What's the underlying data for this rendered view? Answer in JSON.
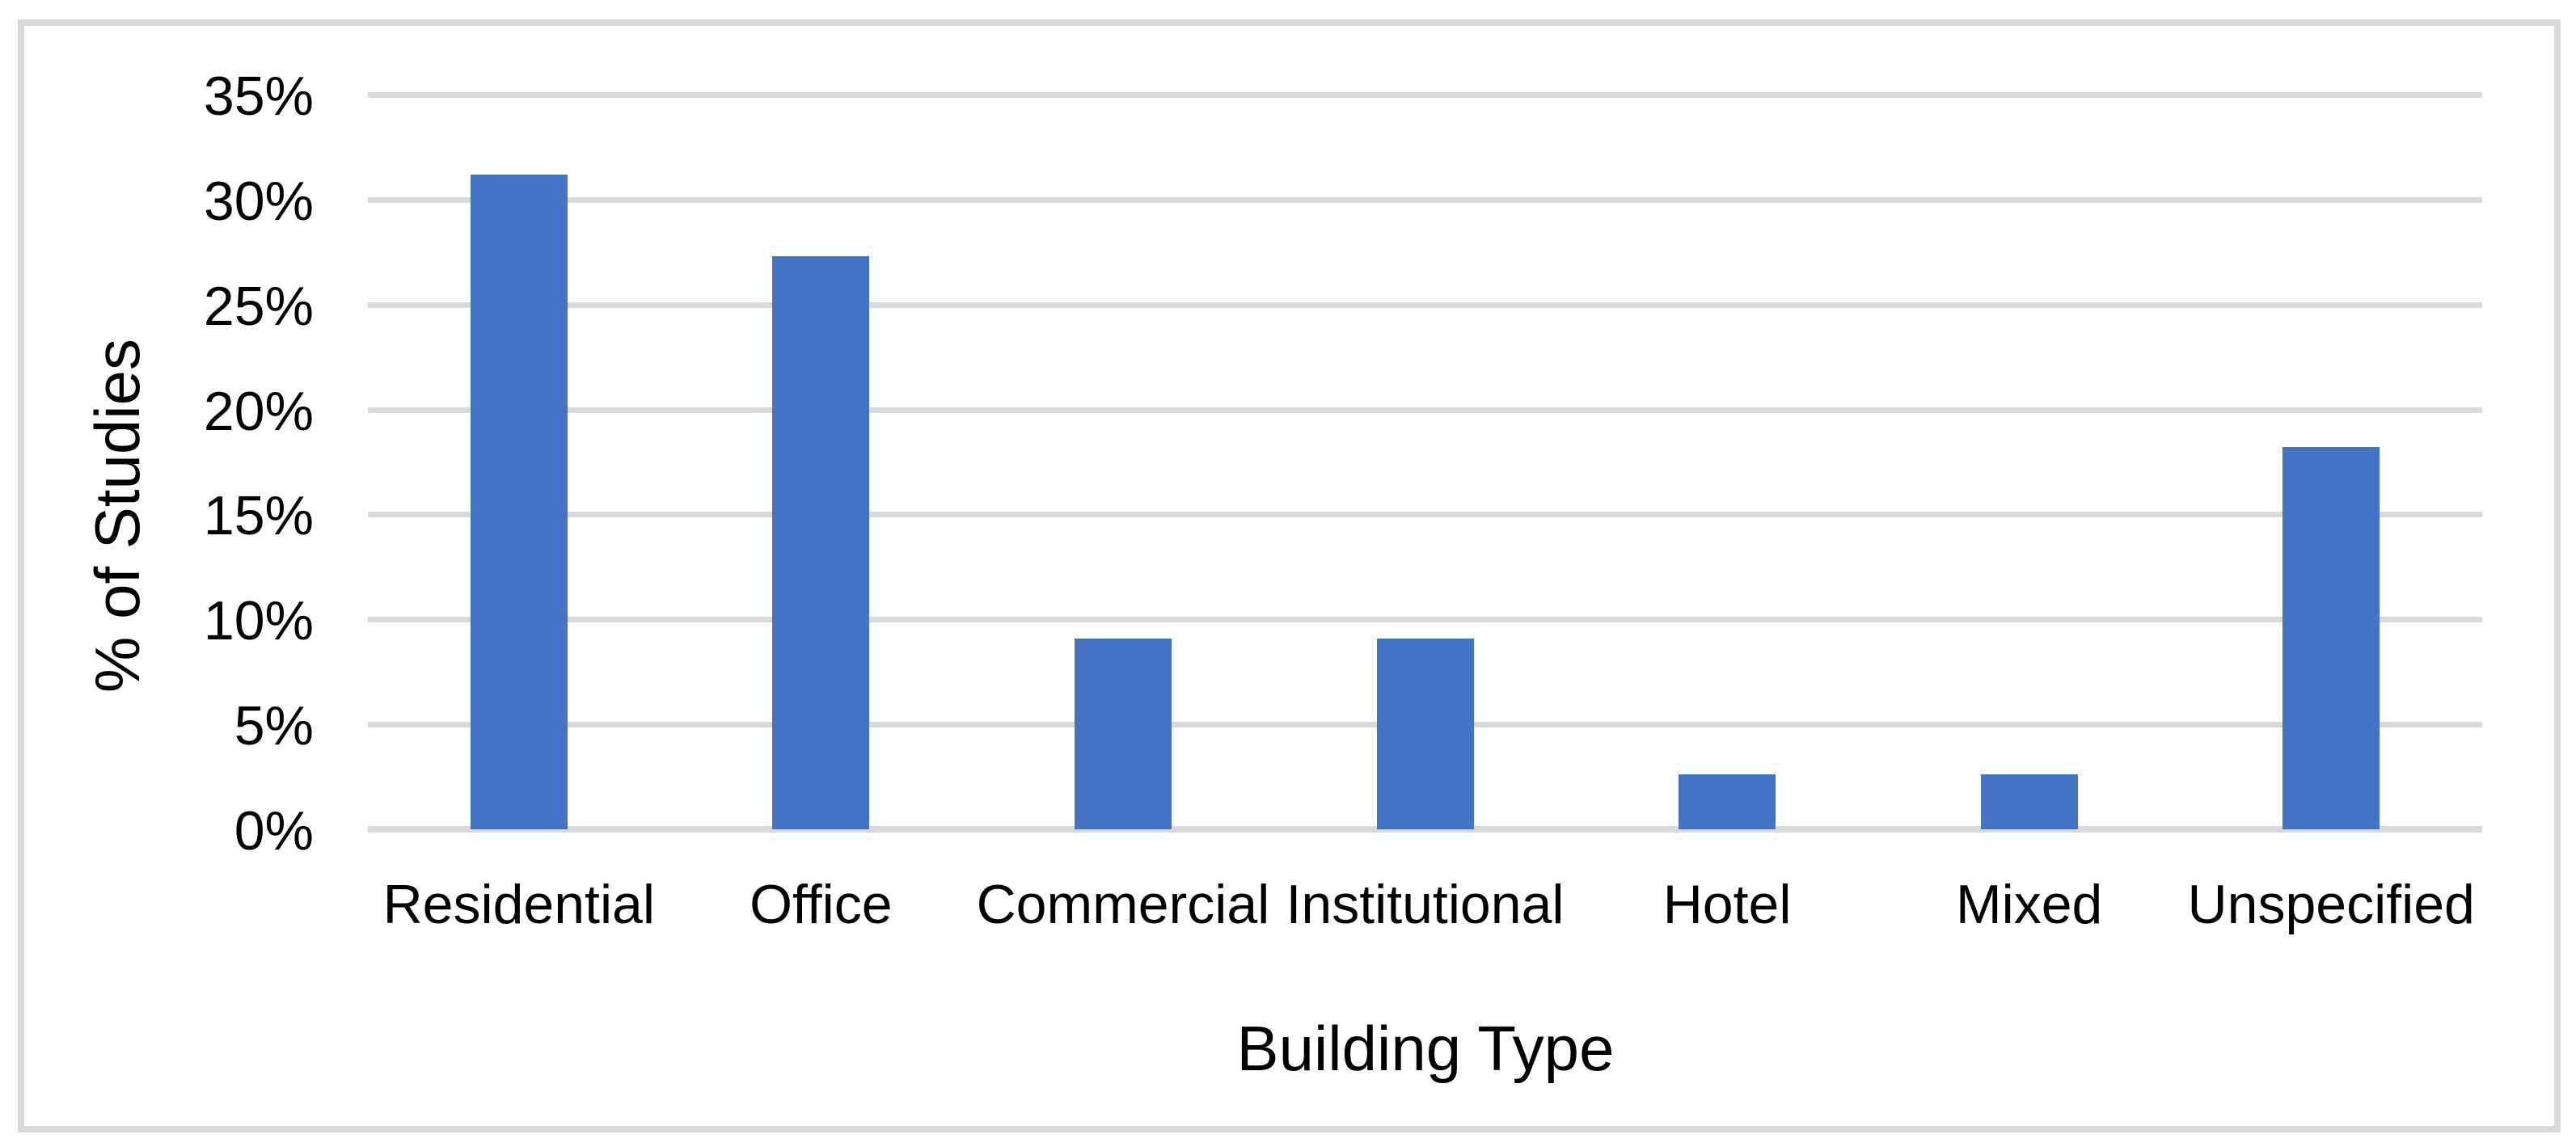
{
  "chart_data": {
    "type": "bar",
    "title": "",
    "xlabel": "Building Type",
    "ylabel": "% of Studies",
    "categories": [
      "Residential",
      "Office",
      "Commercial",
      "Institutional",
      "Hotel",
      "Mixed",
      "Unspecified"
    ],
    "values": [
      31.2,
      27.3,
      9.1,
      9.1,
      2.6,
      2.6,
      18.2
    ],
    "value_unit": "%",
    "ylim": [
      0,
      35
    ],
    "ytick_step": 5,
    "ytick_labels": [
      "0%",
      "5%",
      "10%",
      "15%",
      "20%",
      "25%",
      "30%",
      "35%"
    ],
    "grid": "horizontal",
    "legend": "none",
    "colors": {
      "bar": "#4472C4",
      "gridline": "#D9D9D9",
      "axis_line": "#D9D9D9",
      "frame_border": "#D9D9D9",
      "text": "#000000",
      "background": "#FFFFFF"
    }
  }
}
